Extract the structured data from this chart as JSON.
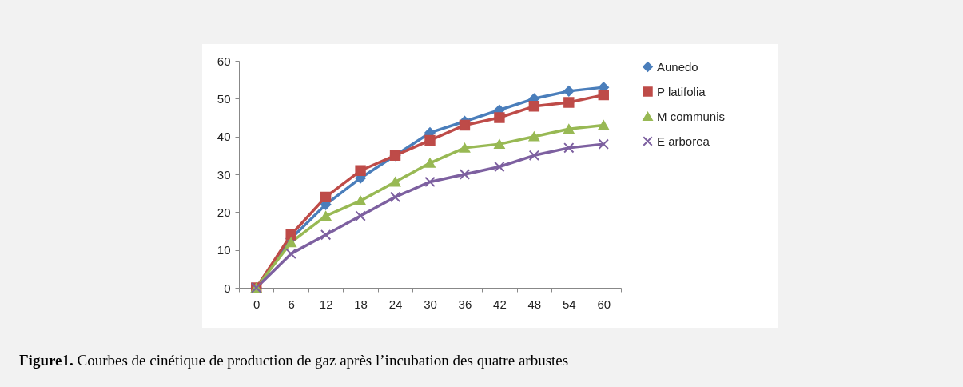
{
  "chart_data": {
    "type": "line",
    "categories": [
      "0",
      "6",
      "12",
      "18",
      "24",
      "30",
      "36",
      "42",
      "48",
      "54",
      "60"
    ],
    "series": [
      {
        "name": "Aunedo",
        "color": "#4a7ebb",
        "marker": "diamond",
        "values": [
          0,
          13,
          22,
          29,
          35,
          41,
          44,
          47,
          50,
          52,
          53
        ]
      },
      {
        "name": "P latifolia",
        "color": "#be4b48",
        "marker": "square",
        "values": [
          0,
          14,
          24,
          31,
          35,
          39,
          43,
          45,
          48,
          49,
          51
        ]
      },
      {
        "name": "M communis",
        "color": "#98b954",
        "marker": "triangle",
        "values": [
          0,
          12,
          19,
          23,
          28,
          33,
          37,
          38,
          40,
          42,
          43
        ]
      },
      {
        "name": "E arborea",
        "color": "#7d60a0",
        "marker": "cross",
        "values": [
          0,
          9,
          14,
          19,
          24,
          28,
          30,
          32,
          35,
          37,
          38
        ]
      }
    ],
    "ylim": [
      0,
      60
    ],
    "yticks": [
      0,
      10,
      20,
      30,
      40,
      50,
      60
    ],
    "grid": false,
    "legend": "right",
    "line_style": "solid",
    "annotations": [
      "Figure1. Courbes de cinétique de production de gaz après l’incubation des quatre arbustes"
    ]
  }
}
